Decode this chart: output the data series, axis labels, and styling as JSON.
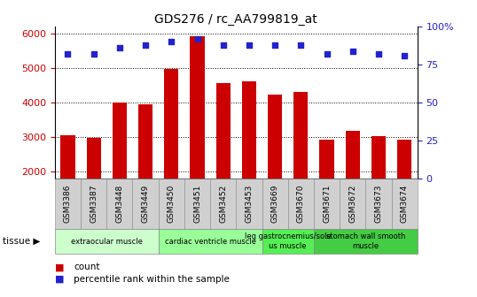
{
  "title": "GDS276 / rc_AA799819_at",
  "samples": [
    "GSM3386",
    "GSM3387",
    "GSM3448",
    "GSM3449",
    "GSM3450",
    "GSM3451",
    "GSM3452",
    "GSM3453",
    "GSM3669",
    "GSM3670",
    "GSM3671",
    "GSM3672",
    "GSM3673",
    "GSM3674"
  ],
  "counts": [
    3060,
    2980,
    4000,
    3950,
    4980,
    5920,
    4560,
    4620,
    4220,
    4300,
    2920,
    3170,
    3010,
    2920
  ],
  "percentiles": [
    82,
    82,
    86,
    88,
    90,
    92,
    88,
    88,
    88,
    88,
    82,
    84,
    82,
    81
  ],
  "ylim_left": [
    1800,
    6200
  ],
  "ylim_right": [
    0,
    100
  ],
  "yticks_left": [
    2000,
    3000,
    4000,
    5000,
    6000
  ],
  "yticks_right": [
    0,
    25,
    50,
    75,
    100
  ],
  "bar_color": "#cc0000",
  "dot_color": "#2222cc",
  "grid_color": "#000000",
  "tissue_groups": [
    {
      "label": "extraocular muscle",
      "start": 0,
      "end": 3,
      "color": "#ccffcc"
    },
    {
      "label": "cardiac ventricle muscle",
      "start": 4,
      "end": 7,
      "color": "#99ff99"
    },
    {
      "label": "leg gastrocnemius/sole\nus muscle",
      "start": 8,
      "end": 9,
      "color": "#55ee55"
    },
    {
      "label": "stomach wall smooth\nmuscle",
      "start": 10,
      "end": 13,
      "color": "#44cc44"
    }
  ],
  "tissue_label": "tissue",
  "legend_count_label": "count",
  "legend_pct_label": "percentile rank within the sample",
  "bg_color": "#ffffff",
  "xticklabel_bg": "#d0d0d0"
}
